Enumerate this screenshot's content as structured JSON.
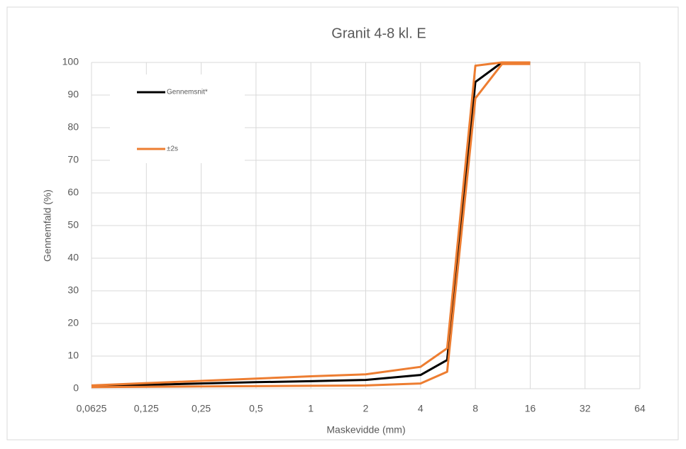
{
  "chart_data": {
    "type": "line",
    "title": "Granit 4-8 kl. E",
    "x_label": "Maskevidde (mm)",
    "y_label": "Gennemfald (%)",
    "x": [
      0.0625,
      0.125,
      0.25,
      0.5,
      1,
      2,
      4,
      5.6,
      8,
      11.2,
      16
    ],
    "series": [
      {
        "name": "Gennemsnit*",
        "color": "#000000",
        "values": [
          0.8,
          1.2,
          1.6,
          2.0,
          2.3,
          2.7,
          4.2,
          8.8,
          94,
          100,
          100
        ]
      },
      {
        "name": "±2s",
        "color": "#ED7D31",
        "values": [
          1.0,
          1.7,
          2.4,
          3.1,
          3.8,
          4.4,
          6.7,
          12.4,
          99,
          100,
          100
        ]
      },
      {
        "name": "±2s",
        "color": "#ED7D31",
        "values": [
          0.5,
          0.6,
          0.7,
          0.8,
          0.9,
          1.0,
          1.6,
          5.2,
          89,
          99.5,
          99.5
        ]
      }
    ],
    "xscale": "log",
    "xlim": [
      0.0625,
      64
    ],
    "xticks": [
      {
        "value": 0.0625,
        "label": "0,0625"
      },
      {
        "value": 0.125,
        "label": "0,125"
      },
      {
        "value": 0.25,
        "label": "0,25"
      },
      {
        "value": 0.5,
        "label": "0,5"
      },
      1,
      2,
      4,
      8,
      16,
      32,
      64
    ],
    "ylim": [
      0,
      100
    ],
    "yticks": [
      0,
      10,
      20,
      30,
      40,
      50,
      60,
      70,
      80,
      90,
      100
    ],
    "grid": true,
    "legend": "upper left"
  }
}
